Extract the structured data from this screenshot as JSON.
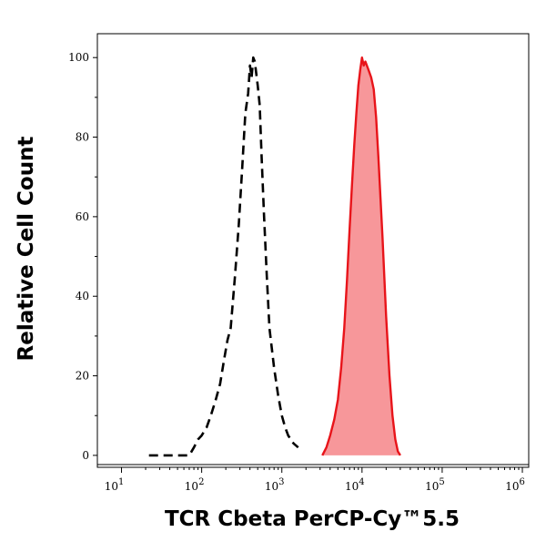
{
  "chart_data": {
    "type": "area",
    "title": "",
    "xlabel": "TCR Cbeta PerCP-Cy™5.5",
    "ylabel": "Relative Cell Count",
    "xscale": "log",
    "xlim": [
      5,
      1200000
    ],
    "ylim": [
      -3,
      106
    ],
    "x_ticks": [
      {
        "value": 10,
        "base": "10",
        "exp": "1"
      },
      {
        "value": 100,
        "base": "10",
        "exp": "2"
      },
      {
        "value": 1000,
        "base": "10",
        "exp": "3"
      },
      {
        "value": 10000,
        "base": "10",
        "exp": "4"
      },
      {
        "value": 100000,
        "base": "10",
        "exp": "5"
      },
      {
        "value": 1000000,
        "base": "10",
        "exp": "6"
      }
    ],
    "y_ticks": [
      0,
      20,
      40,
      60,
      80,
      100
    ],
    "y_tick_labels": [
      "0",
      "20",
      "40",
      "60",
      "80",
      "100"
    ],
    "grid": false,
    "legend": "none",
    "series": [
      {
        "style": "dashed",
        "color": "#000000",
        "fill": "none",
        "x": [
          22,
          25,
          35,
          45,
          50,
          60,
          70,
          80,
          90,
          100,
          115,
          130,
          150,
          170,
          190,
          210,
          230,
          260,
          290,
          320,
          350,
          380,
          400,
          420,
          440,
          460,
          480,
          500,
          530,
          560,
          600,
          650,
          700,
          800,
          900,
          1000,
          1100,
          1200,
          1400,
          1600
        ],
        "y": [
          0,
          0,
          0,
          0,
          0,
          0,
          0,
          2,
          4,
          5,
          7,
          10,
          14,
          18,
          24,
          29,
          32,
          45,
          58,
          72,
          86,
          91,
          98,
          95,
          100,
          99,
          96,
          93,
          88,
          75,
          60,
          45,
          32,
          22,
          15,
          10,
          7,
          5,
          3,
          2
        ]
      },
      {
        "style": "solid",
        "color": "#e8141a",
        "fill": "#f7979a",
        "x": [
          3200,
          3600,
          4000,
          4500,
          5000,
          5500,
          6000,
          6500,
          7000,
          7500,
          8000,
          8500,
          9000,
          9500,
          10000,
          10500,
          11000,
          12000,
          13000,
          14000,
          15000,
          16000,
          18000,
          20000,
          22000,
          24000,
          26000,
          28000,
          30000
        ],
        "y": [
          0,
          2,
          5,
          9,
          14,
          22,
          32,
          44,
          57,
          68,
          78,
          86,
          93,
          97,
          100,
          98,
          99,
          97,
          95,
          92,
          85,
          75,
          55,
          35,
          20,
          10,
          4,
          1,
          0
        ]
      }
    ]
  }
}
